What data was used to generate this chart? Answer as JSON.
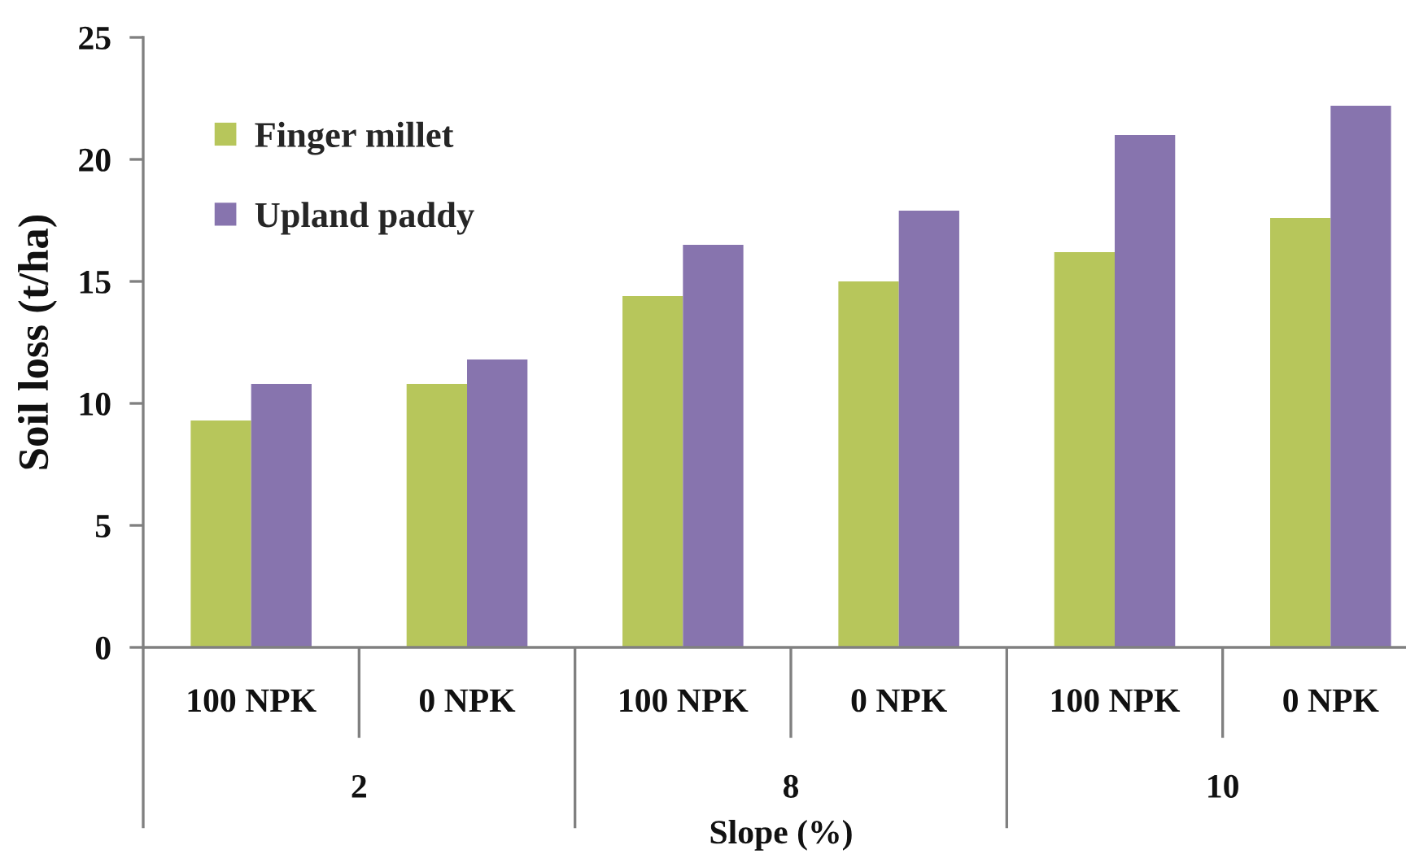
{
  "chart_data": {
    "type": "bar",
    "categories": [
      "100 NPK",
      "0 NPK",
      "100 NPK",
      "0 NPK",
      "100 NPK",
      "0 NPK"
    ],
    "series": [
      {
        "name": "Finger millet",
        "color": "#b7c65b",
        "values": [
          9.3,
          10.8,
          14.4,
          15.0,
          16.2,
          17.6
        ]
      },
      {
        "name": "Upland paddy",
        "color": "#8774ae",
        "values": [
          10.8,
          11.8,
          16.5,
          17.9,
          21.0,
          22.2
        ]
      }
    ],
    "ylabel": "Soil loss (t/ha)",
    "xlabel": "Slope (%)",
    "annotations": [
      "2",
      "8",
      "10"
    ],
    "ylim": [
      0,
      25
    ],
    "yticks": [
      0,
      5,
      10,
      15,
      20,
      25
    ],
    "legend": "top left"
  }
}
